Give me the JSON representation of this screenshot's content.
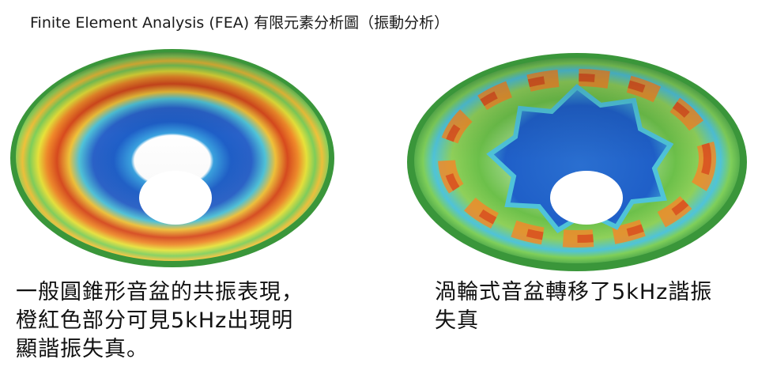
{
  "title": "Finite Element Analysis (FEA) 有限元素分析圖（振動分析）",
  "figures": [
    {
      "caption_lines": [
        "一般圓錐形音盆的共振表現，",
        "橙紅色部分可見5kHz出現明",
        "顯諧振失真。"
      ],
      "pattern": "concentric-rings"
    },
    {
      "caption_lines": [
        "渦輪式音盆轉移了5kHz諧振",
        "失真"
      ],
      "pattern": "star-lobes"
    }
  ],
  "colors": {
    "rim": "#3fa63f",
    "green": "#6cc04a",
    "yellow": "#e8e23a",
    "orange": "#f08a2a",
    "red": "#d84a1e",
    "cyan": "#4fc3d9",
    "blue": "#1f5fc8",
    "deepblue": "#1a3ea8"
  }
}
